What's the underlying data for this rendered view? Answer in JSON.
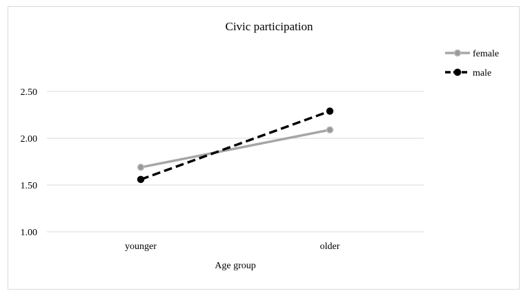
{
  "chart_data": {
    "type": "line",
    "title": "Civic participation",
    "xlabel": "Age group",
    "ylabel": "",
    "categories": [
      "younger",
      "older"
    ],
    "ylim": [
      1.0,
      2.5
    ],
    "yticks": [
      1.0,
      1.5,
      2.0,
      2.5
    ],
    "ytick_labels": [
      "1.00",
      "1.50",
      "2.00",
      "2.50"
    ],
    "grid": true,
    "legend_position": "top-right",
    "series": [
      {
        "name": "female",
        "values": [
          1.69,
          2.09
        ],
        "color": "#a6a6a6",
        "line_style": "solid",
        "marker": "circle"
      },
      {
        "name": "male",
        "values": [
          1.56,
          2.29
        ],
        "color": "#000000",
        "line_style": "dashed",
        "marker": "circle"
      }
    ]
  }
}
